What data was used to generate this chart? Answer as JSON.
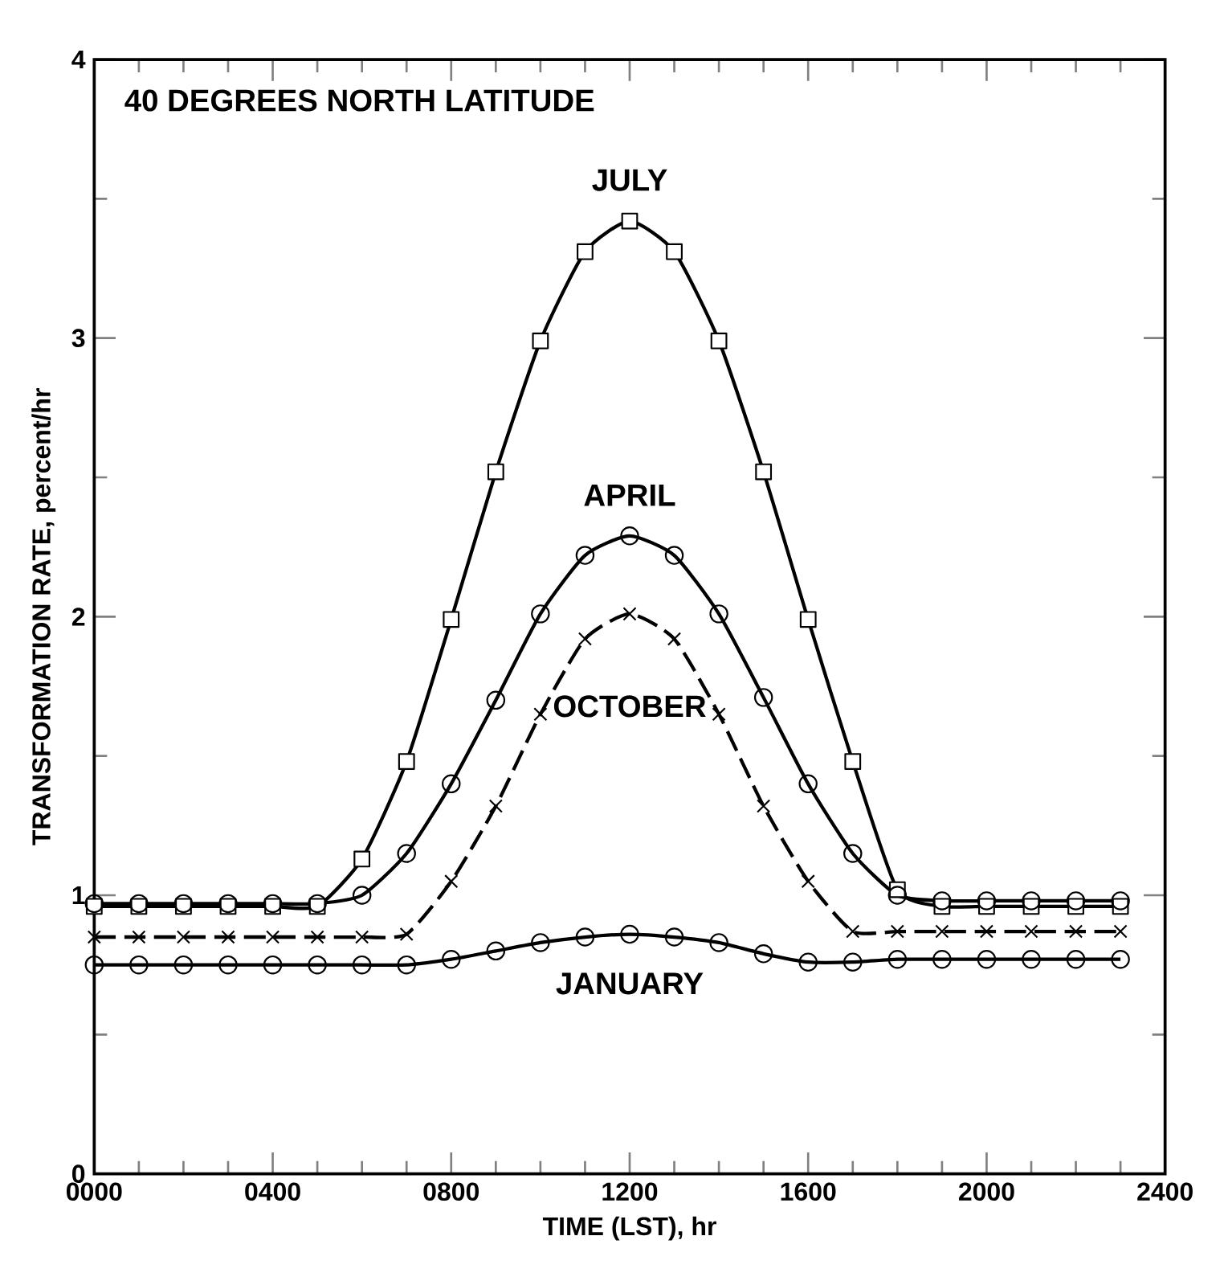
{
  "chart_data": {
    "type": "line",
    "title": "40 DEGREES NORTH LATITUDE",
    "xlabel": "TIME (LST), hr",
    "ylabel": "TRANSFORMATION RATE, percent/hr",
    "x": [
      0,
      100,
      200,
      300,
      400,
      500,
      600,
      700,
      800,
      900,
      1000,
      1100,
      1200,
      1300,
      1400,
      1500,
      1600,
      1700,
      1800,
      1900,
      2000,
      2100,
      2200,
      2300
    ],
    "xlim": [
      0,
      2400
    ],
    "ylim": [
      0,
      4
    ],
    "xticks": [
      {
        "value": 0,
        "label": "0000"
      },
      {
        "value": 400,
        "label": "0400"
      },
      {
        "value": 800,
        "label": "0800"
      },
      {
        "value": 1200,
        "label": "1200"
      },
      {
        "value": 1600,
        "label": "1600"
      },
      {
        "value": 2000,
        "label": "2000"
      },
      {
        "value": 2400,
        "label": "2400"
      }
    ],
    "yticks": [
      0,
      1,
      2,
      3,
      4
    ],
    "grid": false,
    "legend": false,
    "series": [
      {
        "name": "JULY",
        "color": "#000000",
        "marker": "square",
        "line_style": "solid",
        "values": [
          0.96,
          0.96,
          0.96,
          0.96,
          0.96,
          0.96,
          1.13,
          1.48,
          1.99,
          2.52,
          2.99,
          3.31,
          3.42,
          3.31,
          2.99,
          2.52,
          1.99,
          1.48,
          1.02,
          0.96,
          0.96,
          0.96,
          0.96,
          0.96
        ]
      },
      {
        "name": "APRIL",
        "color": "#000000",
        "marker": "circle",
        "line_style": "solid",
        "values": [
          0.97,
          0.97,
          0.97,
          0.97,
          0.97,
          0.97,
          1.0,
          1.15,
          1.4,
          1.7,
          2.01,
          2.22,
          2.29,
          2.22,
          2.01,
          1.71,
          1.4,
          1.15,
          1.0,
          0.98,
          0.98,
          0.98,
          0.98,
          0.98
        ]
      },
      {
        "name": "OCTOBER",
        "color": "#000000",
        "marker": "cross",
        "line_style": "dashed",
        "values": [
          0.85,
          0.85,
          0.85,
          0.85,
          0.85,
          0.85,
          0.85,
          0.86,
          1.05,
          1.32,
          1.65,
          1.92,
          2.01,
          1.92,
          1.65,
          1.32,
          1.05,
          0.87,
          0.87,
          0.87,
          0.87,
          0.87,
          0.87,
          0.87
        ]
      },
      {
        "name": "JANUARY",
        "color": "#000000",
        "marker": "circle",
        "line_style": "solid",
        "values": [
          0.75,
          0.75,
          0.75,
          0.75,
          0.75,
          0.75,
          0.75,
          0.75,
          0.77,
          0.8,
          0.83,
          0.85,
          0.86,
          0.85,
          0.83,
          0.79,
          0.76,
          0.76,
          0.77,
          0.77,
          0.77,
          0.77,
          0.77,
          0.77
        ]
      }
    ]
  }
}
